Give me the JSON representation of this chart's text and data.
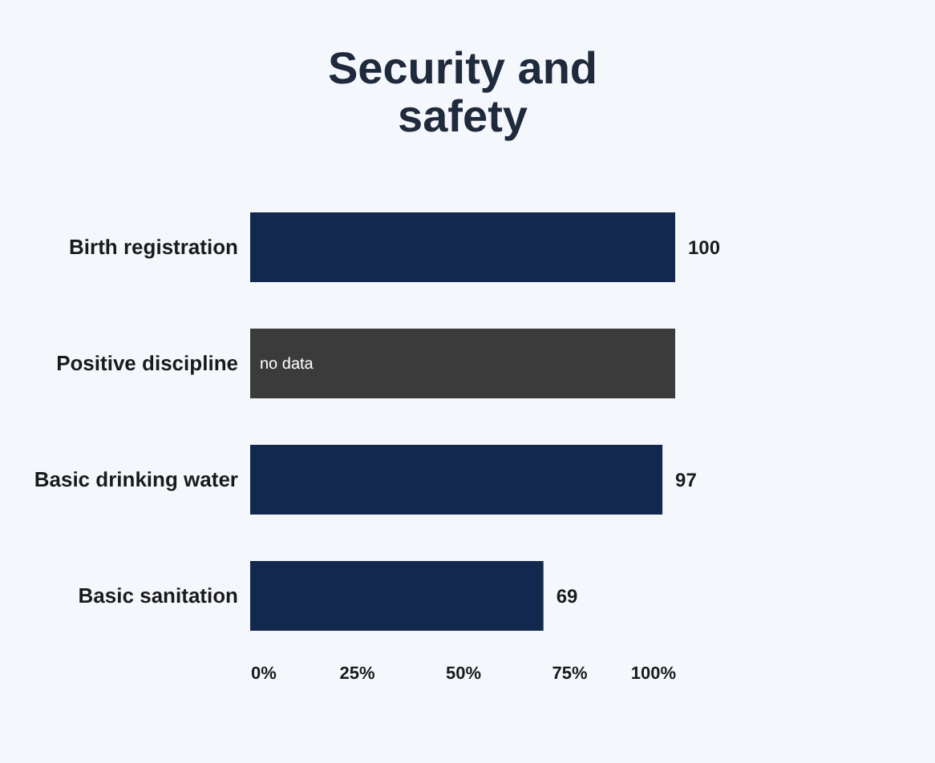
{
  "chart_data": {
    "type": "bar",
    "orientation": "horizontal",
    "title": "Security and safety",
    "categories": [
      "Birth registration",
      "Positive discipline",
      "Basic drinking water",
      "Basic sanitation"
    ],
    "values": [
      100,
      100,
      97,
      69
    ],
    "colors": [
      "#13284f",
      "#3b3b3b",
      "#13284f",
      "#13284f"
    ],
    "value_labels": [
      "100",
      null,
      "97",
      "69"
    ],
    "annotations": [
      {
        "text": "no data",
        "x": 0,
        "y": "Positive discipline"
      }
    ],
    "xlim": [
      0,
      100
    ],
    "xticks": [
      {
        "value": 0,
        "label": "0%"
      },
      {
        "value": 25,
        "label": "25%"
      },
      {
        "value": 50,
        "label": "50%"
      },
      {
        "value": 75,
        "label": "75%"
      },
      {
        "value": 100,
        "label": "100%"
      }
    ],
    "grid": false,
    "legend": false
  }
}
